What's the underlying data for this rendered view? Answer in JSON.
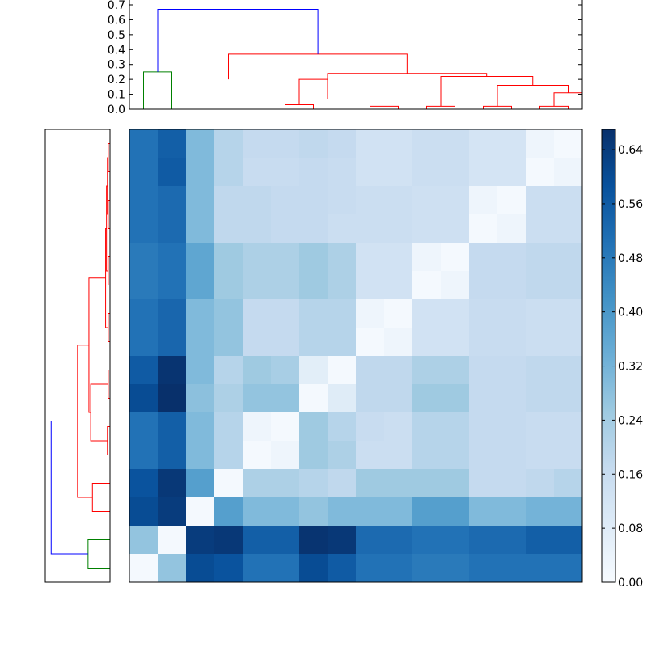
{
  "chart_data": [
    {
      "type": "dendrogram",
      "orientation": "top",
      "title": "",
      "ylim": [
        0,
        0.7
      ],
      "y_ticks": [
        "0.0",
        "0.1",
        "0.2",
        "0.3",
        "0.4",
        "0.5",
        "0.6",
        "0.7"
      ],
      "leaf_count": 16,
      "links": [
        {
          "left": 0.5,
          "right": 1.5,
          "h_left": 0.0,
          "h_right": 0.0,
          "h": 0.03,
          "color": "#ff0000"
        },
        {
          "left": 2.0,
          "right": 1.0,
          "h_left": 0.2,
          "h_right": 0.03,
          "h": 0.2,
          "color": "#ff0000"
        },
        {
          "left": 3.5,
          "right": 4.5,
          "h_left": 0.0,
          "h_right": 0.0,
          "h": 0.02,
          "color": "#ff0000"
        },
        {
          "left": 5.5,
          "right": 6.5,
          "h_left": 0.0,
          "h_right": 0.0,
          "h": 0.02,
          "color": "#ff0000"
        },
        {
          "left": 7.5,
          "right": 8.5,
          "h_left": 0.0,
          "h_right": 0.0,
          "h": 0.02,
          "color": "#ff0000"
        },
        {
          "left": 9.5,
          "right": 10.5,
          "h_left": 0.0,
          "h_right": 0.0,
          "h": 0.02,
          "color": "#ff0000"
        },
        {
          "left": 10.0,
          "right": 11.0,
          "h_left": 0.02,
          "h_right": 0.02,
          "h": 0.11,
          "color": "#ff0000"
        },
        {
          "left": 8.0,
          "right": 10.5,
          "h_left": 0.02,
          "h_right": 0.11,
          "h": 0.16,
          "color": "#ff0000"
        },
        {
          "left": 6.0,
          "right": 9.25,
          "h_left": 0.02,
          "h_right": 0.16,
          "h": 0.22,
          "color": "#ff0000"
        },
        {
          "left": 2.0,
          "right": 7.62,
          "h_left": 0.07,
          "h_right": 0.22,
          "h": 0.24,
          "color": "#ff0000"
        },
        {
          "left": -1.5,
          "right": 4.81,
          "h_left": 0.2,
          "h_right": 0.24,
          "h": 0.37,
          "color": "#ff0000"
        },
        {
          "left": -4.5,
          "right": -3.5,
          "h_left": 0.0,
          "h_right": 0.0,
          "h": 0.25,
          "color": "#008000"
        },
        {
          "left": -4.0,
          "right": 1.66,
          "h_left": 0.25,
          "h_right": 0.37,
          "h": 0.67,
          "color": "#0000ff"
        }
      ]
    },
    {
      "type": "dendrogram",
      "orientation": "left",
      "title": "",
      "leaf_count": 16,
      "xlim": [
        0,
        0.7
      ],
      "colors": {
        "upper": "#ff0000",
        "lower": "#008000",
        "root": "#0000ff"
      }
    },
    {
      "type": "heatmap",
      "title": "",
      "colormap": "Blues",
      "vmin": 0.0,
      "vmax": 0.67,
      "colorbar_ticks": [
        "0.00",
        "0.08",
        "0.16",
        "0.24",
        "0.32",
        "0.40",
        "0.48",
        "0.56",
        "0.64"
      ],
      "rows": 16,
      "cols": 16,
      "values": [
        [
          0.5,
          0.55,
          0.3,
          0.2,
          0.17,
          0.17,
          0.18,
          0.17,
          0.13,
          0.13,
          0.15,
          0.15,
          0.12,
          0.12,
          0.03,
          0.01
        ],
        [
          0.5,
          0.56,
          0.3,
          0.2,
          0.16,
          0.16,
          0.17,
          0.16,
          0.13,
          0.13,
          0.15,
          0.15,
          0.12,
          0.12,
          0.01,
          0.03
        ],
        [
          0.5,
          0.52,
          0.3,
          0.18,
          0.18,
          0.17,
          0.17,
          0.16,
          0.15,
          0.15,
          0.14,
          0.14,
          0.03,
          0.01,
          0.15,
          0.15
        ],
        [
          0.5,
          0.52,
          0.3,
          0.18,
          0.18,
          0.17,
          0.17,
          0.15,
          0.15,
          0.15,
          0.14,
          0.14,
          0.01,
          0.03,
          0.15,
          0.15
        ],
        [
          0.48,
          0.5,
          0.36,
          0.25,
          0.22,
          0.22,
          0.25,
          0.22,
          0.13,
          0.13,
          0.03,
          0.01,
          0.17,
          0.17,
          0.18,
          0.18
        ],
        [
          0.48,
          0.5,
          0.36,
          0.25,
          0.22,
          0.22,
          0.25,
          0.22,
          0.13,
          0.13,
          0.01,
          0.03,
          0.17,
          0.17,
          0.18,
          0.18
        ],
        [
          0.5,
          0.53,
          0.3,
          0.27,
          0.17,
          0.17,
          0.2,
          0.2,
          0.03,
          0.01,
          0.13,
          0.13,
          0.16,
          0.16,
          0.15,
          0.15
        ],
        [
          0.5,
          0.53,
          0.3,
          0.27,
          0.17,
          0.17,
          0.2,
          0.2,
          0.01,
          0.03,
          0.13,
          0.13,
          0.16,
          0.16,
          0.15,
          0.15
        ],
        [
          0.56,
          0.66,
          0.3,
          0.2,
          0.25,
          0.23,
          0.07,
          0.01,
          0.18,
          0.18,
          0.22,
          0.22,
          0.17,
          0.17,
          0.18,
          0.18
        ],
        [
          0.6,
          0.67,
          0.28,
          0.22,
          0.27,
          0.27,
          0.01,
          0.08,
          0.18,
          0.18,
          0.25,
          0.25,
          0.17,
          0.17,
          0.18,
          0.18
        ],
        [
          0.5,
          0.55,
          0.3,
          0.2,
          0.03,
          0.01,
          0.25,
          0.2,
          0.16,
          0.15,
          0.2,
          0.2,
          0.17,
          0.17,
          0.16,
          0.16
        ],
        [
          0.5,
          0.55,
          0.3,
          0.2,
          0.01,
          0.03,
          0.25,
          0.22,
          0.15,
          0.15,
          0.2,
          0.2,
          0.17,
          0.17,
          0.16,
          0.16
        ],
        [
          0.58,
          0.65,
          0.38,
          0.01,
          0.22,
          0.22,
          0.2,
          0.18,
          0.25,
          0.25,
          0.25,
          0.25,
          0.17,
          0.17,
          0.18,
          0.2
        ],
        [
          0.6,
          0.64,
          0.01,
          0.38,
          0.3,
          0.3,
          0.27,
          0.3,
          0.3,
          0.3,
          0.38,
          0.38,
          0.3,
          0.3,
          0.32,
          0.32
        ],
        [
          0.27,
          0.01,
          0.64,
          0.65,
          0.55,
          0.55,
          0.66,
          0.65,
          0.52,
          0.52,
          0.5,
          0.5,
          0.52,
          0.52,
          0.55,
          0.55
        ],
        [
          0.01,
          0.27,
          0.6,
          0.58,
          0.5,
          0.5,
          0.6,
          0.56,
          0.5,
          0.5,
          0.48,
          0.48,
          0.5,
          0.5,
          0.5,
          0.5
        ]
      ]
    }
  ]
}
